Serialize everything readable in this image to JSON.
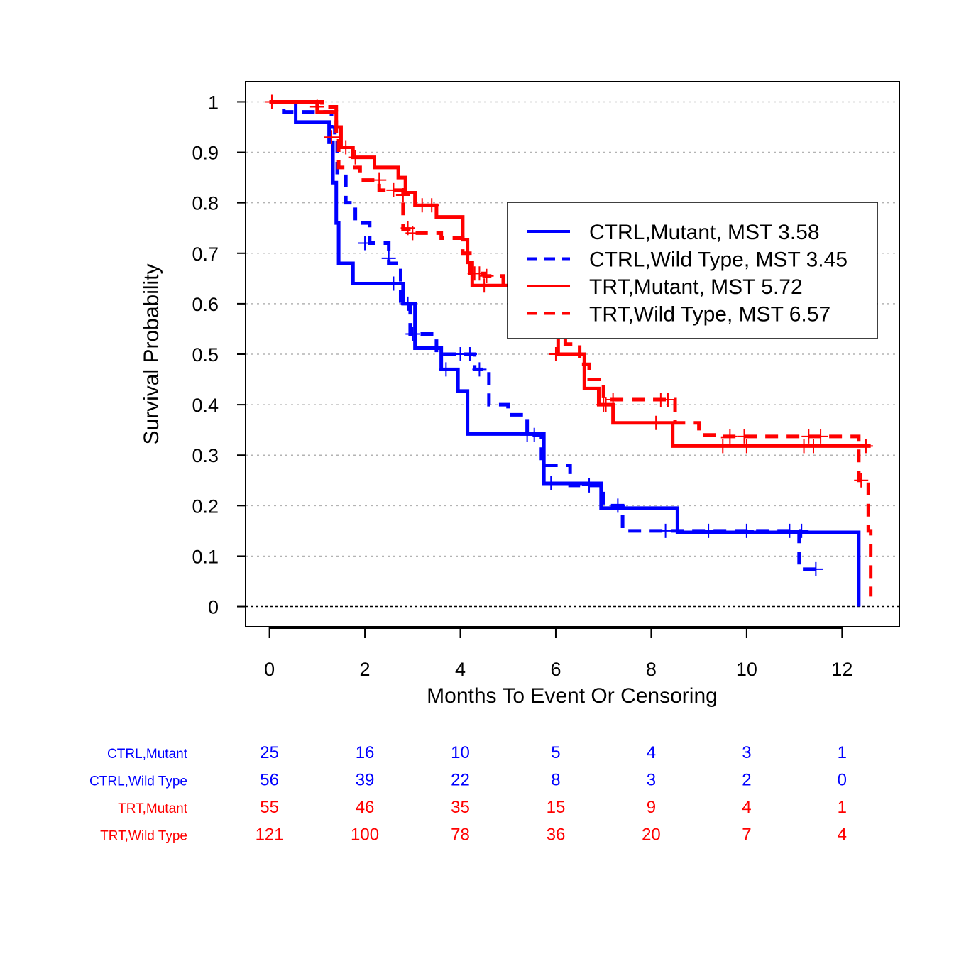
{
  "chart_data": {
    "type": "line",
    "step": true,
    "xlabel": "Months To Event Or Censoring",
    "ylabel": "Survival Probability",
    "xlim": [
      -0.5,
      13.2
    ],
    "ylim": [
      -0.04,
      1.04
    ],
    "xticks": [
      0,
      2,
      4,
      6,
      8,
      10,
      12
    ],
    "yticks": [
      0,
      0.1,
      0.2,
      0.3,
      0.4,
      0.5,
      0.6,
      0.7,
      0.8,
      0.9,
      1
    ],
    "ytick_labels": [
      "0",
      "0.1",
      "0.2",
      "0.3",
      "0.4",
      "0.5",
      "0.6",
      "0.7",
      "0.8",
      "0.9",
      "1"
    ],
    "grid": "horizontal-dotted",
    "legend_position": "top-right",
    "series": [
      {
        "name": "CTRL,Mutant, MST 3.58",
        "group": "CTRL,Mutant",
        "color": "#0000ff",
        "linestyle": "solid",
        "steps": [
          [
            0,
            1
          ],
          [
            0.55,
            0.96
          ],
          [
            1.25,
            0.92
          ],
          [
            1.33,
            0.84
          ],
          [
            1.4,
            0.76
          ],
          [
            1.45,
            0.68
          ],
          [
            1.75,
            0.64
          ],
          [
            2.8,
            0.6
          ],
          [
            3.05,
            0.512
          ],
          [
            3.6,
            0.47
          ],
          [
            3.95,
            0.427
          ],
          [
            4.15,
            0.342
          ],
          [
            5.75,
            0.244
          ],
          [
            6.95,
            0.195
          ],
          [
            8.55,
            0.147
          ],
          [
            12.35,
            0.147
          ],
          [
            12.35,
            0
          ]
        ],
        "censored": [
          [
            2.6,
            0.64
          ],
          [
            3.7,
            0.47
          ],
          [
            5.9,
            0.244
          ],
          [
            11.45,
            0.074
          ]
        ]
      },
      {
        "name": "CTRL,Wild Type, MST 3.45",
        "group": "CTRL,Wild Type",
        "color": "#0000ff",
        "linestyle": "dashed",
        "steps": [
          [
            0,
            1
          ],
          [
            0.3,
            0.98
          ],
          [
            1.3,
            0.95
          ],
          [
            1.37,
            0.93
          ],
          [
            1.42,
            0.86
          ],
          [
            1.6,
            0.8
          ],
          [
            1.8,
            0.76
          ],
          [
            2.1,
            0.72
          ],
          [
            2.5,
            0.68
          ],
          [
            2.75,
            0.6
          ],
          [
            2.95,
            0.54
          ],
          [
            3.5,
            0.5
          ],
          [
            4.0,
            0.5
          ],
          [
            4.3,
            0.47
          ],
          [
            4.6,
            0.4
          ],
          [
            5.0,
            0.38
          ],
          [
            5.4,
            0.34
          ],
          [
            5.7,
            0.28
          ],
          [
            6.3,
            0.24
          ],
          [
            7.0,
            0.2
          ],
          [
            7.4,
            0.15
          ],
          [
            11.1,
            0.15
          ],
          [
            11.1,
            0.074
          ],
          [
            11.45,
            0.074
          ]
        ],
        "censored": [
          [
            2.0,
            0.72
          ],
          [
            2.5,
            0.69
          ],
          [
            2.9,
            0.6
          ],
          [
            3.0,
            0.54
          ],
          [
            4.0,
            0.5
          ],
          [
            4.2,
            0.5
          ],
          [
            4.4,
            0.47
          ],
          [
            5.4,
            0.34
          ],
          [
            5.55,
            0.34
          ],
          [
            6.7,
            0.24
          ],
          [
            7.3,
            0.2
          ],
          [
            8.3,
            0.15
          ],
          [
            9.2,
            0.15
          ],
          [
            10.0,
            0.15
          ],
          [
            10.9,
            0.15
          ],
          [
            11.15,
            0.15
          ]
        ]
      },
      {
        "name": "TRT,Mutant, MST 5.72",
        "group": "TRT,Mutant",
        "color": "#ff0000",
        "linestyle": "solid",
        "steps": [
          [
            0,
            1
          ],
          [
            1.0,
            0.98
          ],
          [
            1.4,
            0.95
          ],
          [
            1.5,
            0.91
          ],
          [
            1.75,
            0.89
          ],
          [
            2.2,
            0.87
          ],
          [
            2.7,
            0.85
          ],
          [
            2.85,
            0.82
          ],
          [
            3.05,
            0.795
          ],
          [
            3.5,
            0.772
          ],
          [
            4.05,
            0.727
          ],
          [
            4.15,
            0.682
          ],
          [
            4.25,
            0.636
          ],
          [
            6.05,
            0.5
          ],
          [
            6.6,
            0.432
          ],
          [
            6.9,
            0.4
          ],
          [
            7.2,
            0.364
          ],
          [
            8.45,
            0.318
          ],
          [
            12.6,
            0.318
          ]
        ],
        "censored": [
          [
            1.6,
            0.91
          ],
          [
            3.2,
            0.795
          ],
          [
            3.4,
            0.795
          ],
          [
            4.5,
            0.636
          ],
          [
            6.0,
            0.5
          ],
          [
            7.0,
            0.4
          ],
          [
            7.05,
            0.4
          ],
          [
            8.1,
            0.364
          ],
          [
            9.5,
            0.318
          ],
          [
            10.0,
            0.318
          ],
          [
            11.2,
            0.318
          ],
          [
            11.4,
            0.318
          ],
          [
            12.5,
            0.318
          ]
        ]
      },
      {
        "name": "TRT,Wild Type, MST 6.57",
        "group": "TRT,Wild Type",
        "color": "#ff0000",
        "linestyle": "dashed",
        "steps": [
          [
            0,
            1
          ],
          [
            1.1,
            0.99
          ],
          [
            1.4,
            0.93
          ],
          [
            1.45,
            0.87
          ],
          [
            1.9,
            0.845
          ],
          [
            2.3,
            0.825
          ],
          [
            2.8,
            0.81
          ],
          [
            2.8,
            0.748
          ],
          [
            3.1,
            0.74
          ],
          [
            3.6,
            0.73
          ],
          [
            4.05,
            0.7
          ],
          [
            4.2,
            0.66
          ],
          [
            4.5,
            0.655
          ],
          [
            4.9,
            0.635
          ],
          [
            6.0,
            0.54
          ],
          [
            6.2,
            0.52
          ],
          [
            6.5,
            0.48
          ],
          [
            6.7,
            0.45
          ],
          [
            7.0,
            0.41
          ],
          [
            8.5,
            0.364
          ],
          [
            9.0,
            0.34
          ],
          [
            9.5,
            0.337
          ],
          [
            12.35,
            0.25
          ],
          [
            12.55,
            0.15
          ],
          [
            12.6,
            0.02
          ]
        ],
        "censored": [
          [
            0.05,
            1
          ],
          [
            1.0,
            0.99
          ],
          [
            1.3,
            0.93
          ],
          [
            1.8,
            0.89
          ],
          [
            2.3,
            0.845
          ],
          [
            2.6,
            0.825
          ],
          [
            2.8,
            0.815
          ],
          [
            2.9,
            0.75
          ],
          [
            3.0,
            0.74
          ],
          [
            4.3,
            0.66
          ],
          [
            4.4,
            0.66
          ],
          [
            4.55,
            0.655
          ],
          [
            7.2,
            0.41
          ],
          [
            8.2,
            0.41
          ],
          [
            8.35,
            0.41
          ],
          [
            9.65,
            0.337
          ],
          [
            9.95,
            0.337
          ],
          [
            11.3,
            0.337
          ],
          [
            11.55,
            0.337
          ],
          [
            12.4,
            0.25
          ]
        ]
      }
    ],
    "risk_table": {
      "times": [
        0,
        2,
        4,
        6,
        8,
        10,
        12
      ],
      "rows": [
        {
          "label": "CTRL,Mutant",
          "color": "#0000ff",
          "values": [
            "25",
            "16",
            "10",
            "5",
            "4",
            "3",
            "1"
          ]
        },
        {
          "label": "CTRL,Wild Type",
          "color": "#0000ff",
          "values": [
            "56",
            "39",
            "22",
            "8",
            "3",
            "2",
            "0"
          ]
        },
        {
          "label": "TRT,Mutant",
          "color": "#ff0000",
          "values": [
            "55",
            "46",
            "35",
            "15",
            "9",
            "4",
            "1"
          ]
        },
        {
          "label": "TRT,Wild Type",
          "color": "#ff0000",
          "values": [
            "121",
            "100",
            "78",
            "36",
            "20",
            "7",
            "4"
          ]
        }
      ]
    }
  }
}
